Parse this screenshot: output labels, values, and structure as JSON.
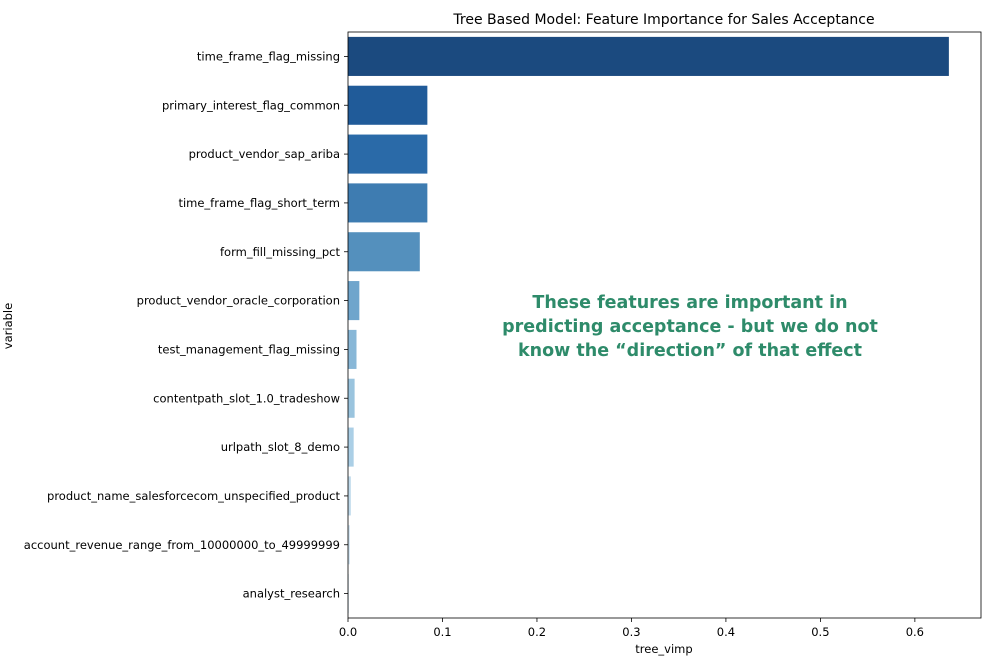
{
  "chart_data": {
    "type": "bar",
    "orientation": "horizontal",
    "title": "Tree Based Model: Feature Importance for Sales Acceptance",
    "xlabel": "tree_vimp",
    "ylabel": "variable",
    "xlim": [
      0,
      0.67
    ],
    "xticks": [
      "0.0",
      "0.1",
      "0.2",
      "0.3",
      "0.4",
      "0.5",
      "0.6"
    ],
    "grid": false,
    "categories": [
      "time_frame_flag_missing",
      "primary_interest_flag_common",
      "product_vendor_sap_ariba",
      "time_frame_flag_short_term",
      "form_fill_missing_pct",
      "product_vendor_oracle_corporation",
      "test_management_flag_missing",
      "contentpath_slot_1.0_tradeshow",
      "urlpath_slot_8_demo",
      "product_name_salesforcecom_unspecified_product",
      "account_revenue_range_from_10000000_to_49999999",
      "analyst_research"
    ],
    "values": [
      0.636,
      0.084,
      0.084,
      0.084,
      0.076,
      0.012,
      0.009,
      0.007,
      0.006,
      0.003,
      0.002,
      0.001
    ],
    "colors": [
      "#1b4a7f",
      "#205b99",
      "#2a6aa8",
      "#3e7cb1",
      "#5490bd",
      "#6fa5cc",
      "#88b7d7",
      "#9ac4de",
      "#abcfe6",
      "#c1dbec",
      "#d3e5f2",
      "#e2eef7"
    ]
  },
  "annotation": {
    "lines": [
      "These features are important in",
      "predicting acceptance - but we do not",
      "know the “direction” of that effect"
    ],
    "color": "#2e8b6a"
  }
}
